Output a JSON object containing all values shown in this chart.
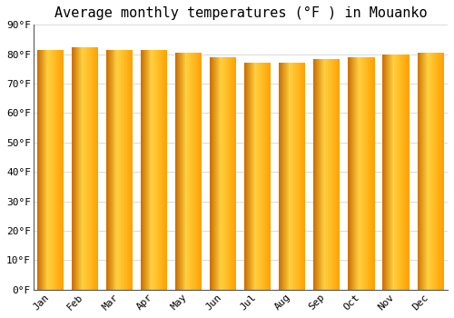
{
  "title": "Average monthly temperatures (°F ) in Mouanko",
  "months": [
    "Jan",
    "Feb",
    "Mar",
    "Apr",
    "May",
    "Jun",
    "Jul",
    "Aug",
    "Sep",
    "Oct",
    "Nov",
    "Dec"
  ],
  "values": [
    81.5,
    82.5,
    81.5,
    81.5,
    80.5,
    79.0,
    77.0,
    77.0,
    78.5,
    79.0,
    80.0,
    80.5
  ],
  "ylim": [
    0,
    90
  ],
  "yticks": [
    0,
    10,
    20,
    30,
    40,
    50,
    60,
    70,
    80,
    90
  ],
  "ytick_labels": [
    "0°F",
    "10°F",
    "20°F",
    "30°F",
    "40°F",
    "50°F",
    "60°F",
    "70°F",
    "80°F",
    "90°F"
  ],
  "bar_color_left": "#CC7000",
  "bar_color_center": "#FFD040",
  "bar_color_right": "#FFA000",
  "background_color": "#FFFFFF",
  "plot_bg_color": "#FFFFFF",
  "grid_color": "#CCCCCC",
  "title_fontsize": 11,
  "tick_fontsize": 8,
  "bar_width": 0.75,
  "fig_width": 5.0,
  "fig_height": 3.5,
  "dpi": 100
}
